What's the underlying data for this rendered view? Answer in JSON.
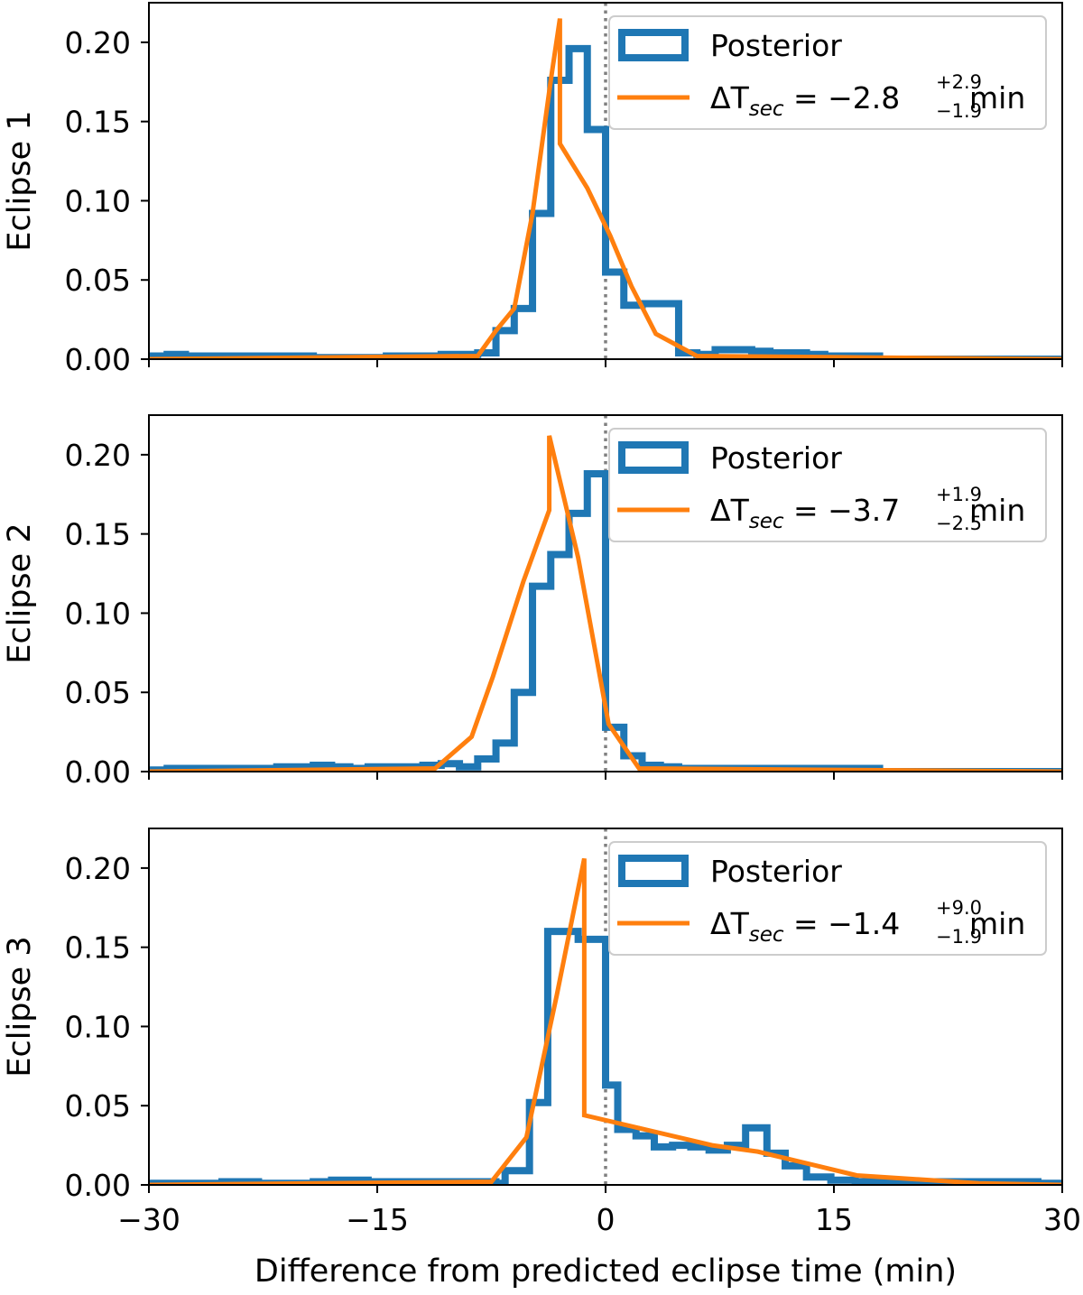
{
  "chart_data": {
    "type": "histogram",
    "xlabel": "Difference from predicted eclipse time (min)",
    "xlim": [
      -30,
      30
    ],
    "xticks": [
      -30,
      -15,
      0,
      15,
      30
    ],
    "xtick_labels": [
      "−30",
      "−15",
      "0",
      "15",
      "30"
    ],
    "ylim": [
      0,
      0.225
    ],
    "yticks": [
      0,
      0.05,
      0.1,
      0.15,
      0.2
    ],
    "ytick_labels": [
      "0.00",
      "0.05",
      "0.10",
      "0.15",
      "0.20"
    ],
    "reference_line_x": 0,
    "colors": {
      "posterior": "#1f77b4",
      "fit": "#ff7f0e",
      "reference": "#808080"
    },
    "legend_location": "upper right",
    "panels": [
      {
        "ylabel": "Eclipse 1",
        "legend": [
          {
            "label": "Posterior"
          },
          {
            "label": "ΔT",
            "sub": "sec",
            "value": " = −2.8",
            "sup_text": "+2.9",
            "sub_text": "−1.9",
            "unit": " min"
          }
        ],
        "histogram": {
          "edges": [
            -30,
            -28.8,
            -27.6,
            -26.4,
            -25.2,
            -24,
            -22.8,
            -21.6,
            -20.4,
            -19.2,
            -18,
            -16.8,
            -15.6,
            -14.4,
            -13.2,
            -12,
            -10.8,
            -9.6,
            -8.4,
            -7.2,
            -6,
            -4.8,
            -3.6,
            -2.4,
            -1.2,
            0,
            1.2,
            2.4,
            3.6,
            4.8,
            6,
            7.2,
            8.4,
            9.6,
            10.8,
            12,
            13.2,
            14.4,
            15.6,
            16.8,
            18,
            30
          ],
          "values": [
            0.002,
            0.003,
            0.002,
            0.002,
            0.002,
            0.002,
            0.002,
            0.002,
            0.002,
            0.001,
            0.001,
            0.001,
            0.001,
            0.002,
            0.002,
            0.002,
            0.003,
            0.003,
            0.004,
            0.018,
            0.032,
            0.092,
            0.176,
            0.196,
            0.145,
            0.055,
            0.034,
            0.035,
            0.035,
            0.004,
            0.003,
            0.006,
            0.006,
            0.005,
            0.004,
            0.004,
            0.003,
            0.002,
            0.002,
            0.002,
            0.0
          ]
        },
        "fit": {
          "x": [
            -30,
            -8.4,
            -7.2,
            -6.0,
            -4.8,
            -3.6,
            -3.0,
            -3.0,
            -1.2,
            0.3,
            1.7,
            3.3,
            6.0,
            30
          ],
          "y": [
            0,
            0.002,
            0.018,
            0.032,
            0.092,
            0.176,
            0.215,
            0.136,
            0.108,
            0.078,
            0.046,
            0.016,
            0.002,
            0
          ]
        }
      },
      {
        "ylabel": "Eclipse 2",
        "legend": [
          {
            "label": "Posterior"
          },
          {
            "label": "ΔT",
            "sub": "sec",
            "value": " = −3.7",
            "sup_text": "+1.9",
            "sub_text": "−2.5",
            "unit": " min"
          }
        ],
        "histogram": {
          "edges": [
            -30,
            -28.8,
            -27.6,
            -26.4,
            -25.2,
            -24,
            -22.8,
            -21.6,
            -20.4,
            -19.2,
            -18,
            -16.8,
            -15.6,
            -14.4,
            -13.2,
            -12,
            -10.8,
            -9.6,
            -8.4,
            -7.2,
            -6,
            -4.8,
            -3.6,
            -2.4,
            -1.2,
            0,
            1.2,
            2.4,
            3.6,
            4.8,
            6,
            7.2,
            8.4,
            9.6,
            10.8,
            12,
            13.2,
            14.4,
            15.6,
            16.8,
            18,
            30
          ],
          "values": [
            0.001,
            0.002,
            0.002,
            0.002,
            0.002,
            0.002,
            0.002,
            0.003,
            0.003,
            0.004,
            0.003,
            0.002,
            0.003,
            0.003,
            0.003,
            0.004,
            0.005,
            0.003,
            0.008,
            0.018,
            0.05,
            0.117,
            0.137,
            0.163,
            0.188,
            0.028,
            0.01,
            0.004,
            0.003,
            0.002,
            0.002,
            0.002,
            0.002,
            0.002,
            0.002,
            0.002,
            0.002,
            0.002,
            0.002,
            0.002,
            0.0
          ]
        },
        "fit": {
          "x": [
            -30,
            -11.2,
            -8.8,
            -7.4,
            -5.4,
            -3.7,
            -3.7,
            -1.8,
            0.2,
            2.2,
            30
          ],
          "y": [
            0,
            0.002,
            0.022,
            0.06,
            0.12,
            0.165,
            0.212,
            0.135,
            0.03,
            0.002,
            0
          ]
        }
      },
      {
        "ylabel": "Eclipse 3",
        "legend": [
          {
            "label": "Posterior"
          },
          {
            "label": "ΔT",
            "sub": "sec",
            "value": " = −1.4",
            "sup_text": "+9.0",
            "sub_text": "−1.9",
            "unit": " min"
          }
        ],
        "histogram": {
          "edges": [
            -30,
            -28.8,
            -27.6,
            -26.4,
            -25.2,
            -24,
            -22.8,
            -21.6,
            -20.4,
            -19.2,
            -18,
            -16.8,
            -15.6,
            -14.4,
            -13.2,
            -12,
            -10.8,
            -9.6,
            -8.4,
            -7.2,
            -6.6,
            -5.0,
            -3.8,
            -1.8,
            0,
            0.8,
            2.0,
            3.2,
            4.4,
            5.6,
            6.8,
            8.0,
            9.2,
            10.6,
            11.8,
            13.2,
            14.8,
            16.4,
            18.0,
            19.6,
            21.2,
            22.8,
            24.4,
            26.4,
            28.4,
            30
          ],
          "values": [
            0.001,
            0.001,
            0.001,
            0.001,
            0.002,
            0.002,
            0.001,
            0.001,
            0.001,
            0.002,
            0.003,
            0.003,
            0.002,
            0.002,
            0.002,
            0.002,
            0.002,
            0.002,
            0.002,
            0.001,
            0.009,
            0.052,
            0.16,
            0.155,
            0.063,
            0.035,
            0.031,
            0.024,
            0.025,
            0.024,
            0.022,
            0.025,
            0.036,
            0.02,
            0.012,
            0.005,
            0.003,
            0.002,
            0.002,
            0.002,
            0.002,
            0.002,
            0.002,
            0.002,
            0.001
          ]
        },
        "fit": {
          "x": [
            -30,
            -7.5,
            -5.2,
            -3.2,
            -1.4,
            -1.4,
            7.0,
            10.0,
            16.5,
            24.5,
            30
          ],
          "y": [
            0,
            0.002,
            0.03,
            0.12,
            0.206,
            0.044,
            0.025,
            0.021,
            0.006,
            0.001,
            0
          ]
        }
      }
    ]
  }
}
